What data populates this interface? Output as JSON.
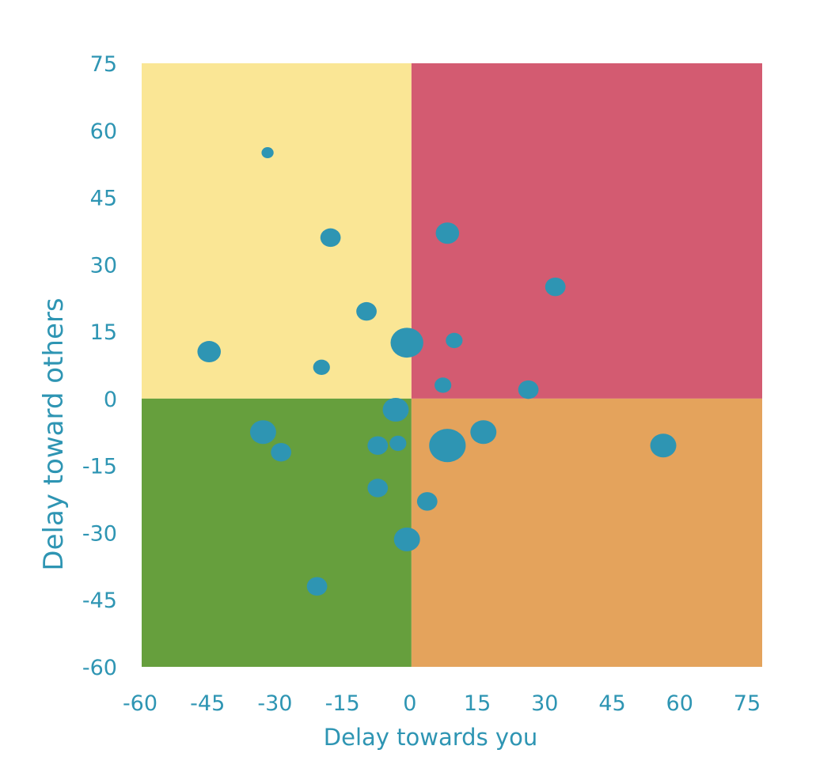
{
  "chart_data": {
    "type": "bubble",
    "title": "",
    "xlabel": "Delay towards you",
    "ylabel": "Delay toward others",
    "xlim": [
      -60,
      78
    ],
    "ylim": [
      -60,
      75
    ],
    "xticks": [
      "-60",
      "-45",
      "-30",
      "-15",
      "0",
      "15",
      "30",
      "45",
      "60",
      "75"
    ],
    "yticks": [
      "75",
      "60",
      "45",
      "30",
      "15",
      "0",
      "-15",
      "-30",
      "-45",
      "-60"
    ],
    "grid": false,
    "legend": "none",
    "quadrants": [
      {
        "name": "upper-left",
        "x": [
          -60,
          0
        ],
        "y": [
          0,
          75
        ],
        "color": "#fae695"
      },
      {
        "name": "upper-right",
        "x": [
          0,
          78
        ],
        "y": [
          0,
          75
        ],
        "color": "#d35b71"
      },
      {
        "name": "lower-left",
        "x": [
          -60,
          0
        ],
        "y": [
          -60,
          0
        ],
        "color": "#669f3d"
      },
      {
        "name": "lower-right",
        "x": [
          0,
          78
        ],
        "y": [
          -60,
          0
        ],
        "color": "#e4a35c"
      }
    ],
    "bubble_color": "#2e95b3",
    "points": [
      {
        "x": -32,
        "y": 55,
        "size": 1
      },
      {
        "x": -18,
        "y": 36,
        "size": 3
      },
      {
        "x": 8,
        "y": 37,
        "size": 4
      },
      {
        "x": 32,
        "y": 25,
        "size": 3
      },
      {
        "x": -10,
        "y": 19.5,
        "size": 3
      },
      {
        "x": -1,
        "y": 12.5,
        "size": 8
      },
      {
        "x": 9.5,
        "y": 13,
        "size": 2
      },
      {
        "x": -45,
        "y": 10.5,
        "size": 4
      },
      {
        "x": -20,
        "y": 7,
        "size": 2
      },
      {
        "x": 7,
        "y": 3,
        "size": 2
      },
      {
        "x": 26,
        "y": 2,
        "size": 3
      },
      {
        "x": -3.5,
        "y": -2.5,
        "size": 5
      },
      {
        "x": -33,
        "y": -7.5,
        "size": 5
      },
      {
        "x": -29,
        "y": -12,
        "size": 3
      },
      {
        "x": -7.5,
        "y": -10.5,
        "size": 3
      },
      {
        "x": -3,
        "y": -10,
        "size": 2
      },
      {
        "x": 8,
        "y": -10.5,
        "size": 10
      },
      {
        "x": 16,
        "y": -7.5,
        "size": 5
      },
      {
        "x": 56,
        "y": -10.5,
        "size": 5
      },
      {
        "x": -7.5,
        "y": -20,
        "size": 3
      },
      {
        "x": 3.5,
        "y": -23,
        "size": 3
      },
      {
        "x": -1,
        "y": -31.5,
        "size": 5
      },
      {
        "x": -21,
        "y": -42,
        "size": 3
      }
    ]
  }
}
